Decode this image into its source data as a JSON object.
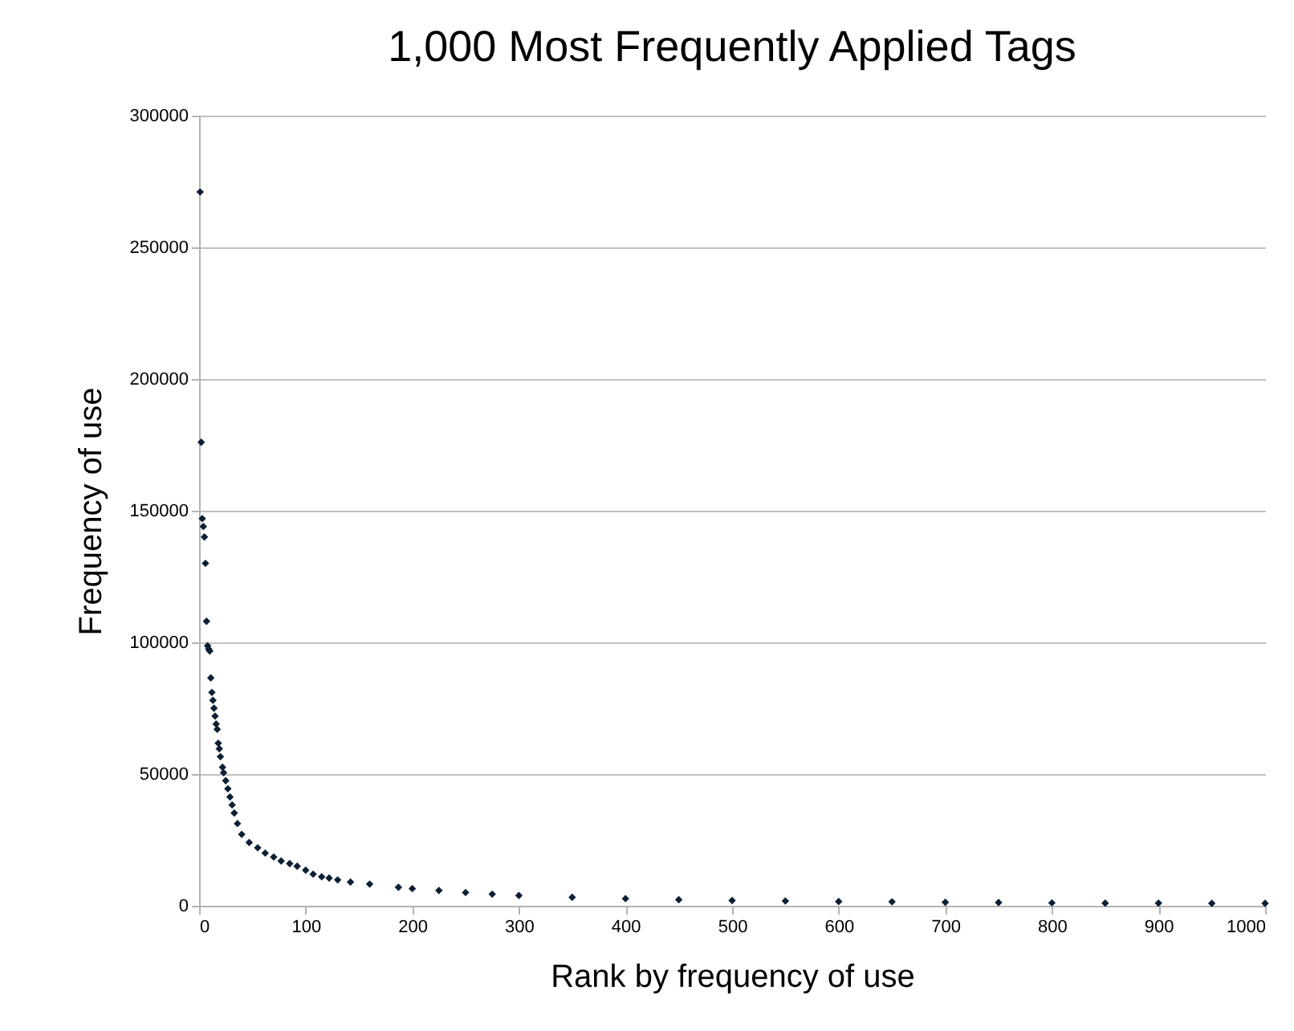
{
  "chart_data": {
    "type": "scatter",
    "title": "1,000 Most Frequently Applied Tags",
    "xlabel": "Rank by frequency of use",
    "ylabel": "Frequency of use",
    "x": [
      1,
      2,
      3,
      4,
      5,
      6,
      7,
      8,
      9,
      10,
      11,
      12,
      13,
      14,
      15,
      16,
      17,
      18,
      19,
      20,
      22,
      23,
      25,
      27,
      29,
      31,
      33,
      36,
      40,
      47,
      55,
      62,
      70,
      77,
      85,
      92,
      100,
      107,
      115,
      122,
      130,
      142,
      160,
      187,
      200,
      225,
      250,
      275,
      300,
      350,
      400,
      450,
      500,
      550,
      600,
      650,
      700,
      750,
      800,
      850,
      900,
      950,
      1000
    ],
    "series": [
      {
        "color": "#0d1f33",
        "values": [
          271000,
          176000,
          147000,
          144000,
          140000,
          130000,
          108000,
          98700,
          97500,
          96700,
          86500,
          81000,
          78000,
          75000,
          72000,
          69000,
          67000,
          61700,
          59600,
          56600,
          52600,
          50500,
          47500,
          44400,
          41300,
          38300,
          35200,
          31200,
          27100,
          24000,
          22000,
          20000,
          18500,
          17000,
          16000,
          15000,
          13500,
          12000,
          11000,
          10500,
          9800,
          9000,
          8200,
          7000,
          6500,
          5800,
          5000,
          4400,
          3900,
          3200,
          2700,
          2300,
          2000,
          1800,
          1600,
          1500,
          1300,
          1200,
          1100,
          1000,
          1000,
          900,
          900
        ]
      }
    ],
    "xlim": [
      0,
      1000
    ],
    "xticks": [
      0,
      100,
      200,
      300,
      400,
      500,
      600,
      700,
      800,
      900,
      1000
    ],
    "ylim": [
      0,
      300000
    ],
    "yticks": [
      0,
      50000,
      100000,
      150000,
      200000,
      250000,
      300000
    ],
    "grid": "y",
    "marker": "diamond"
  }
}
